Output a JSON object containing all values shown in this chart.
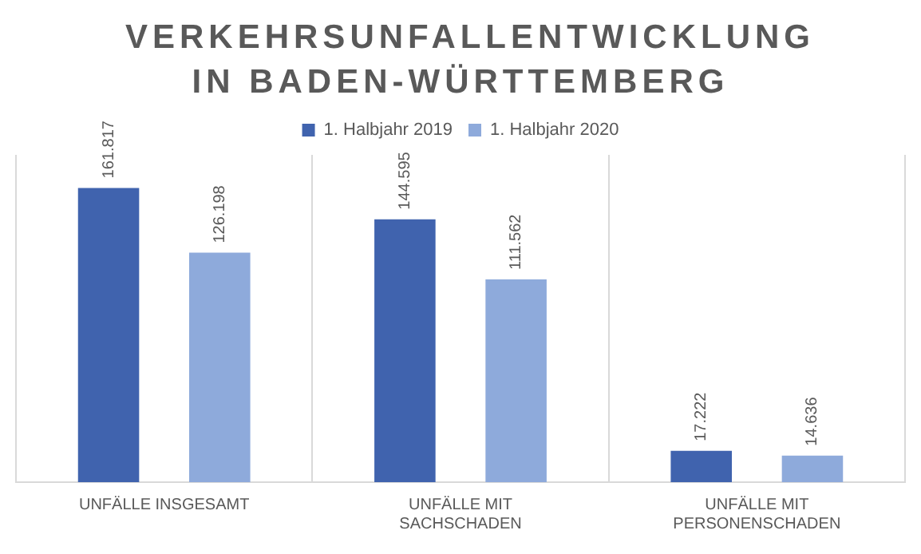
{
  "chart_data": {
    "type": "bar",
    "title": "VERKEHRSUNFALLENTWICKLUNG IN BADEN-WÜRTTEMBERG",
    "categories": [
      "UNFÄLLE INSGESAMT",
      "UNFÄLLE MIT SACHSCHADEN",
      "UNFÄLLE MIT PERSONENSCHADEN"
    ],
    "series": [
      {
        "name": "1. Halbjahr 2019",
        "color": "#4063ae",
        "values": [
          161817,
          144595,
          17222
        ],
        "value_labels": [
          "161.817",
          "144.595",
          "17.222"
        ]
      },
      {
        "name": "1. Halbjahr 2020",
        "color": "#8eaadb",
        "values": [
          126198,
          111562,
          14636
        ],
        "value_labels": [
          "126.198",
          "111.562",
          "14.636"
        ]
      }
    ],
    "legend": "top",
    "grid": "x"
  }
}
